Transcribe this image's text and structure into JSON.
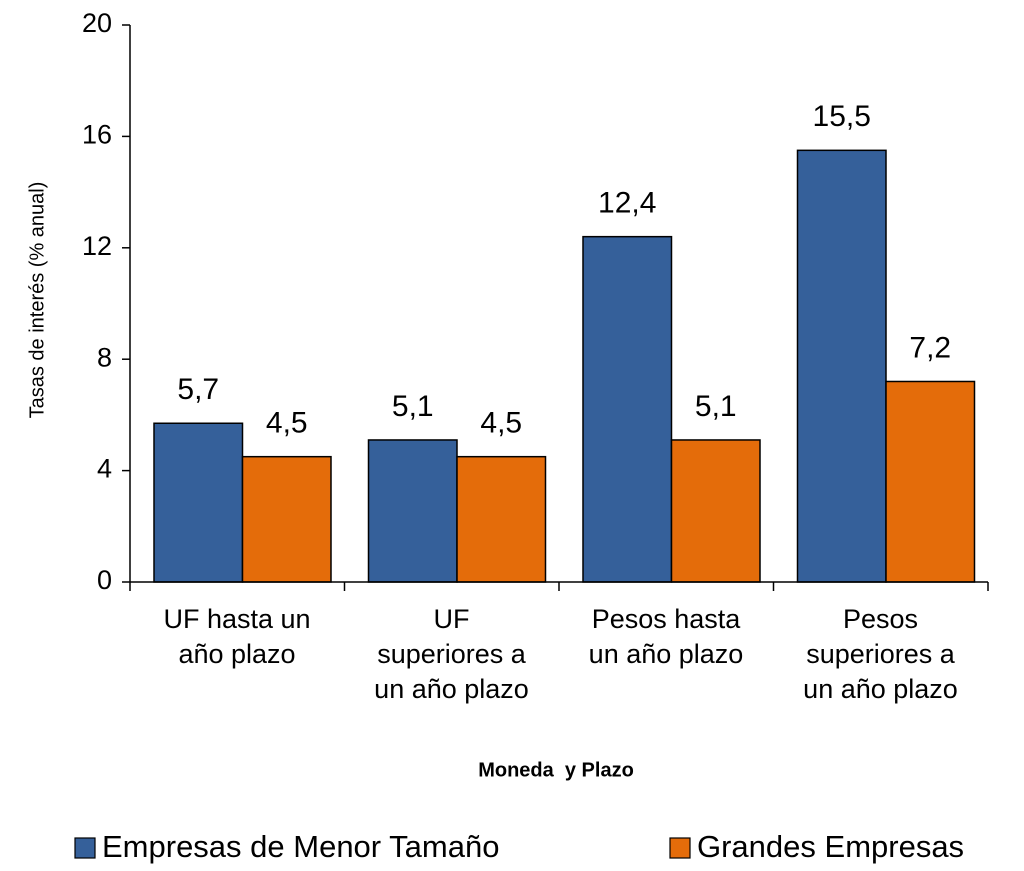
{
  "chart_data": {
    "type": "bar",
    "y_axis_label": "Tasas de interés (% anual)",
    "x_axis_label": "Moneda  y Plazo",
    "categories": [
      "UF hasta un\naño plazo",
      "UF\nsuperiores a\nun año plazo",
      "Pesos hasta\nun año plazo",
      "Pesos\nsuperiores a\nun año plazo"
    ],
    "series": [
      {
        "name": "Empresas de Menor Tamaño",
        "color": "#35609a",
        "values": [
          5.7,
          5.1,
          12.4,
          15.5
        ],
        "value_labels": [
          "5,7",
          "5,1",
          "12,4",
          "15,5"
        ]
      },
      {
        "name": "Grandes Empresas",
        "color": "#e46c0a",
        "values": [
          4.5,
          4.5,
          5.1,
          7.2
        ],
        "value_labels": [
          "4,5",
          "4,5",
          "5,1",
          "7,2"
        ]
      }
    ],
    "ylim": [
      0,
      20
    ],
    "yticks": [
      0,
      4,
      8,
      12,
      16,
      20
    ],
    "grid": false,
    "legend": "bottom"
  }
}
